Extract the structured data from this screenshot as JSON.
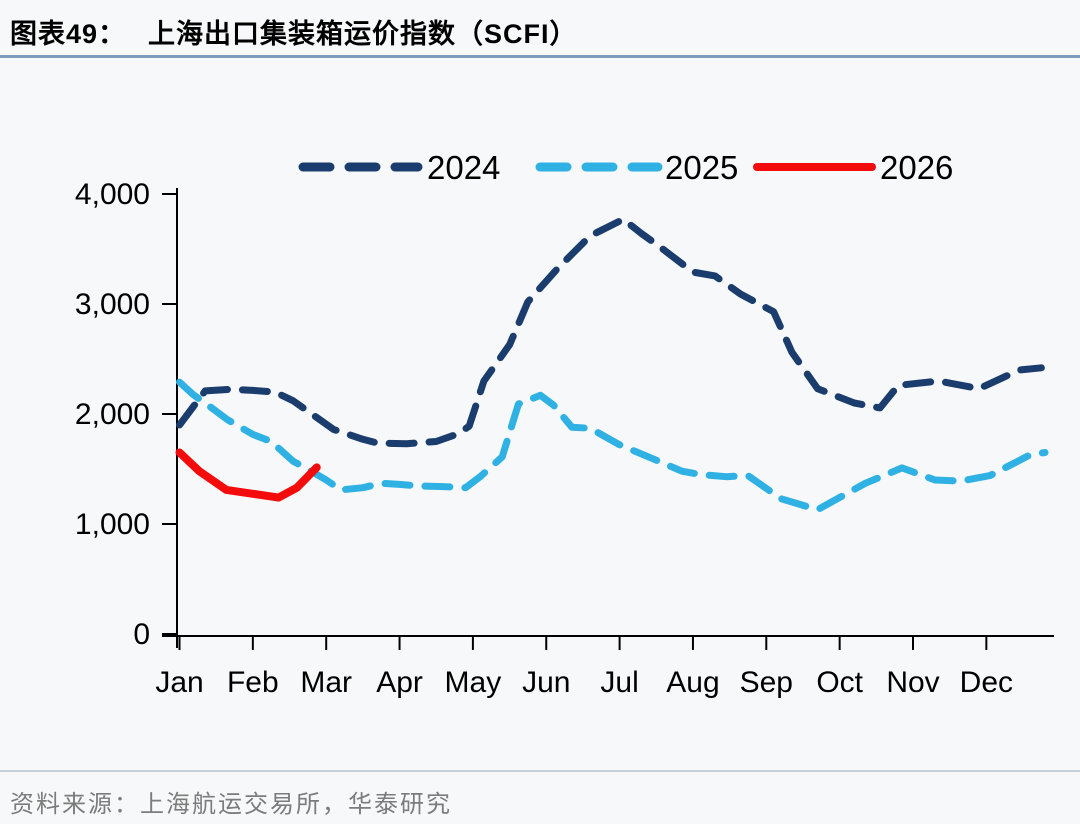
{
  "header": {
    "figure_label": "图表49：",
    "title": "上海出口集装箱运价指数（SCFI）"
  },
  "footer": {
    "source": "资料来源：上海航运交易所，华泰研究"
  },
  "colors": {
    "series_2024": "#1b3d6d",
    "series_2025": "#2fb1e3",
    "series_2026": "#f40b0b",
    "axis": "#000000",
    "title_rule": "#7e9cbb",
    "footer_rule": "#c7d0da",
    "source_text": "#7c7c7c",
    "background": "#f7f8f9"
  },
  "chart_data": {
    "type": "line",
    "title": "上海出口集装箱运价指数（SCFI）",
    "xlabel": "",
    "ylabel": "",
    "x_categories": [
      "Jan",
      "Feb",
      "Mar",
      "Apr",
      "May",
      "Jun",
      "Jul",
      "Aug",
      "Sep",
      "Oct",
      "Nov",
      "Dec"
    ],
    "y_ticks": [
      "0",
      "1,000",
      "2,000",
      "3,000",
      "4,000"
    ],
    "y_tick_values": [
      0,
      1000,
      2000,
      3000,
      4000
    ],
    "ylim": [
      0,
      4000
    ],
    "grid": false,
    "legend_position": "top-center",
    "series": [
      {
        "name": "2024",
        "color": "#1b3d6d",
        "style": "dashed",
        "points": [
          [
            0,
            1900
          ],
          [
            0.35,
            2210
          ],
          [
            0.7,
            2225
          ],
          [
            1.0,
            2215
          ],
          [
            1.3,
            2200
          ],
          [
            1.55,
            2120
          ],
          [
            2.1,
            1860
          ],
          [
            2.5,
            1770
          ],
          [
            2.7,
            1735
          ],
          [
            3.1,
            1730
          ],
          [
            3.5,
            1750
          ],
          [
            3.8,
            1820
          ],
          [
            3.95,
            1890
          ],
          [
            4.15,
            2300
          ],
          [
            4.5,
            2630
          ],
          [
            4.75,
            3020
          ],
          [
            5.15,
            3320
          ],
          [
            5.6,
            3620
          ],
          [
            6.05,
            3770
          ],
          [
            6.3,
            3640
          ],
          [
            6.55,
            3520
          ],
          [
            7.0,
            3290
          ],
          [
            7.3,
            3255
          ],
          [
            7.65,
            3090
          ],
          [
            8.1,
            2930
          ],
          [
            8.35,
            2560
          ],
          [
            8.7,
            2230
          ],
          [
            9.2,
            2100
          ],
          [
            9.55,
            2055
          ],
          [
            9.8,
            2260
          ],
          [
            10.35,
            2300
          ],
          [
            10.9,
            2230
          ],
          [
            11.45,
            2400
          ],
          [
            11.75,
            2420
          ]
        ]
      },
      {
        "name": "2025",
        "color": "#2fb1e3",
        "style": "dashed",
        "points": [
          [
            0,
            2290
          ],
          [
            0.18,
            2180
          ],
          [
            0.45,
            2050
          ],
          [
            0.65,
            1950
          ],
          [
            1.0,
            1815
          ],
          [
            1.25,
            1750
          ],
          [
            1.55,
            1570
          ],
          [
            1.8,
            1480
          ],
          [
            2.0,
            1400
          ],
          [
            2.2,
            1310
          ],
          [
            2.5,
            1330
          ],
          [
            2.75,
            1370
          ],
          [
            3.0,
            1360
          ],
          [
            3.3,
            1345
          ],
          [
            3.6,
            1340
          ],
          [
            3.9,
            1330
          ],
          [
            4.1,
            1430
          ],
          [
            4.4,
            1610
          ],
          [
            4.62,
            2090
          ],
          [
            4.92,
            2170
          ],
          [
            5.1,
            2080
          ],
          [
            5.35,
            1880
          ],
          [
            5.6,
            1870
          ],
          [
            6.0,
            1720
          ],
          [
            6.5,
            1580
          ],
          [
            6.85,
            1480
          ],
          [
            7.1,
            1450
          ],
          [
            7.45,
            1430
          ],
          [
            7.75,
            1440
          ],
          [
            8.2,
            1230
          ],
          [
            8.7,
            1130
          ],
          [
            9.35,
            1370
          ],
          [
            9.85,
            1510
          ],
          [
            10.3,
            1400
          ],
          [
            10.65,
            1390
          ],
          [
            11.05,
            1440
          ],
          [
            11.6,
            1630
          ],
          [
            11.8,
            1650
          ]
        ]
      },
      {
        "name": "2026",
        "color": "#f40b0b",
        "style": "solid",
        "points": [
          [
            0,
            1650
          ],
          [
            0.27,
            1480
          ],
          [
            0.64,
            1310
          ],
          [
            1.0,
            1275
          ],
          [
            1.35,
            1240
          ],
          [
            1.6,
            1330
          ],
          [
            1.87,
            1515
          ]
        ]
      }
    ]
  }
}
